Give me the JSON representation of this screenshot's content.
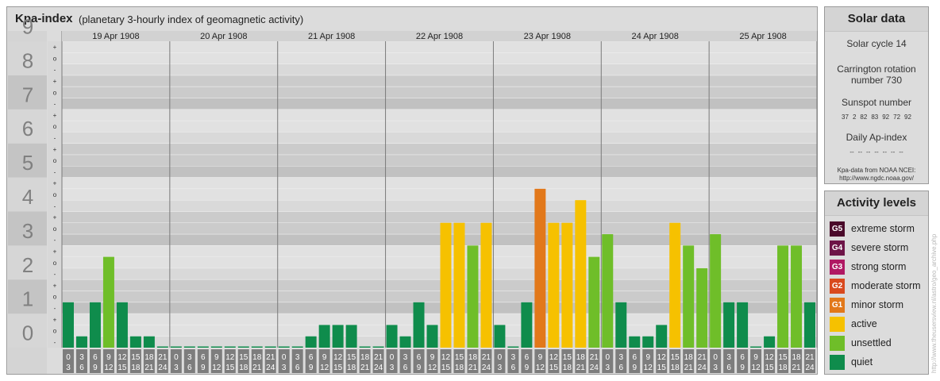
{
  "header": {
    "title": "Kpa-index",
    "subtitle": "(planetary 3-hourly index of geomagnetic activity)"
  },
  "chart_data": {
    "type": "bar",
    "title": "Kpa-index",
    "subtitle": "(planetary 3-hourly index of geomagnetic activity)",
    "ylim": [
      0,
      9
    ],
    "y_ticks": [
      "0",
      "1",
      "2",
      "3",
      "4",
      "5",
      "6",
      "7",
      "8",
      "9"
    ],
    "sub_ticks": [
      "-",
      "o",
      "+"
    ],
    "days": [
      "19 Apr 1908",
      "20 Apr 1908",
      "21 Apr 1908",
      "22 Apr 1908",
      "23 Apr 1908",
      "24 Apr 1908",
      "25 Apr 1908"
    ],
    "interval_labels": [
      [
        "0",
        "3"
      ],
      [
        "3",
        "6"
      ],
      [
        "6",
        "9"
      ],
      [
        "9",
        "12"
      ],
      [
        "12",
        "15"
      ],
      [
        "15",
        "18"
      ],
      [
        "18",
        "21"
      ],
      [
        "21",
        "24"
      ]
    ],
    "values": [
      [
        1.333,
        0.333,
        1.333,
        2.667,
        1.333,
        0.333,
        0.333,
        0
      ],
      [
        0,
        0,
        0,
        0,
        0,
        0,
        0,
        0
      ],
      [
        0,
        0,
        0.333,
        0.667,
        0.667,
        0.667,
        0,
        0
      ],
      [
        0.667,
        0.333,
        1.333,
        0.667,
        3.667,
        3.667,
        3,
        3.667
      ],
      [
        0.667,
        0,
        1.333,
        4.667,
        3.667,
        3.667,
        4.333,
        2.667
      ],
      [
        3.333,
        1.333,
        0.333,
        0.333,
        0.667,
        3.667,
        3,
        2.333
      ],
      [
        3.333,
        1.333,
        1.333,
        0,
        0.333,
        3,
        3,
        1.333
      ]
    ],
    "grid": true
  },
  "colors": {
    "quiet": "#0f8c4c",
    "unsettled": "#6fbe29",
    "active": "#f6c100",
    "minor": "#e2781a",
    "moderate": "#d9491e",
    "strong": "#b01863",
    "severe": "#6d1447",
    "extreme": "#4a0a2a"
  },
  "solar": {
    "title": "Solar data",
    "cycle": "Solar cycle 14",
    "carrington_1": "Carrington rotation",
    "carrington_2": "number 730",
    "sunspot_title": "Sunspot number",
    "sunspots": [
      "37",
      "2",
      "82",
      "83",
      "92",
      "72",
      "92"
    ],
    "ap_title": "Daily Ap-index",
    "ap_values": [
      "--",
      "--",
      "--",
      "--",
      "--",
      "--",
      "--"
    ],
    "note_1": "Kpa-data from NOAA NCEI:",
    "note_2": "http://www.ngdc.noaa.gov/"
  },
  "activity": {
    "title": "Activity levels",
    "items": [
      {
        "code": "G5",
        "label": "extreme storm",
        "color": "#4a0a2a"
      },
      {
        "code": "G4",
        "label": "severe storm",
        "color": "#6d1447"
      },
      {
        "code": "G3",
        "label": "strong storm",
        "color": "#b01863"
      },
      {
        "code": "G2",
        "label": "moderate storm",
        "color": "#d9491e"
      },
      {
        "code": "G1",
        "label": "minor storm",
        "color": "#e2781a"
      },
      {
        "code": "",
        "label": "active",
        "color": "#f6c100"
      },
      {
        "code": "",
        "label": "unsettled",
        "color": "#6fbe29"
      },
      {
        "code": "",
        "label": "quiet",
        "color": "#0f8c4c"
      }
    ]
  },
  "watermark": "http://www.theusersview.nl/astro/geo_archive.php"
}
